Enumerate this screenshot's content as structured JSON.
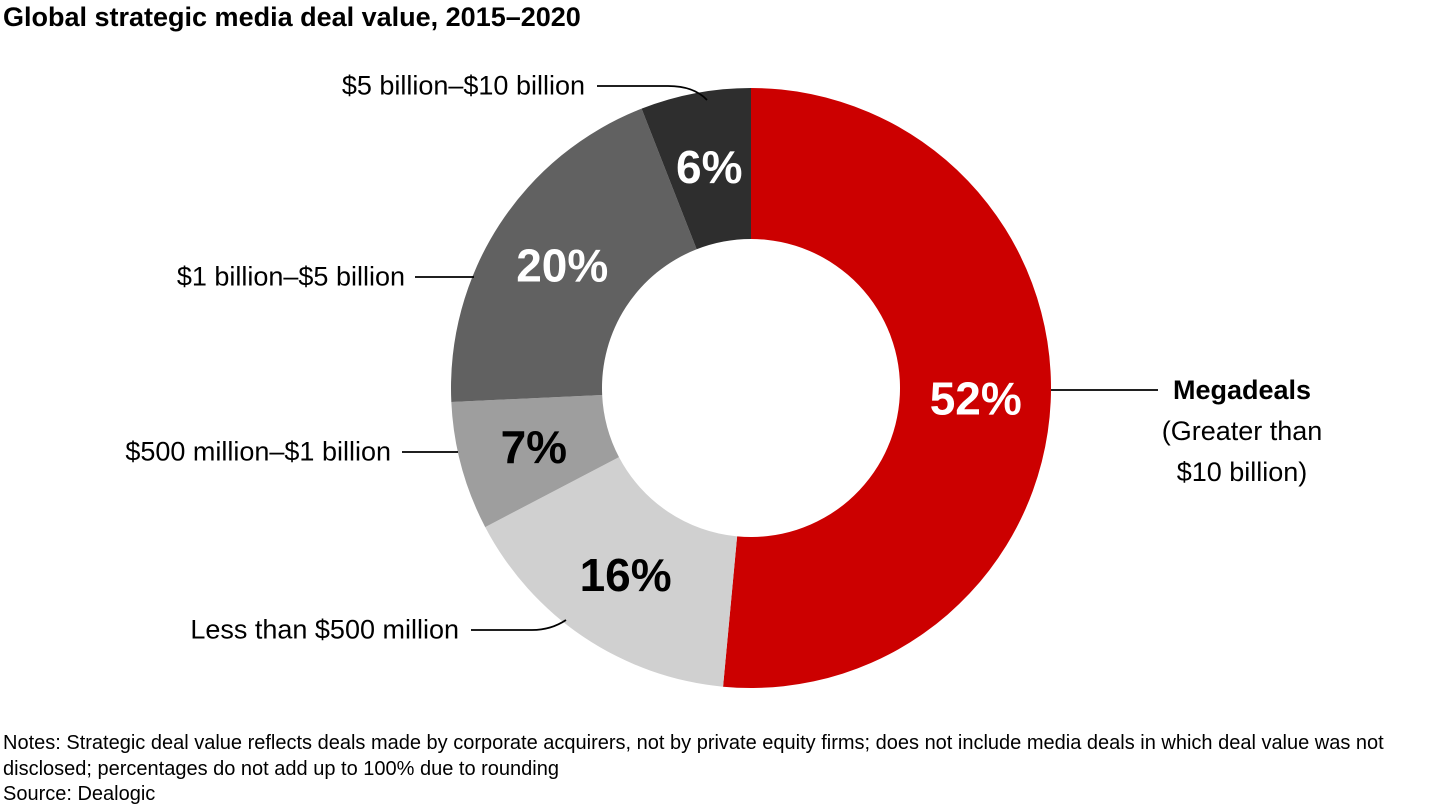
{
  "title": "Global strategic media deal value, 2015–2020",
  "chart_data": {
    "type": "pie",
    "variant": "donut",
    "title": "Global strategic media deal value, 2015–2020",
    "unit": "%",
    "direction": "clockwise-from-top",
    "segments": [
      {
        "label": "Megadeals",
        "sublabel_lines": [
          "(Greater than",
          "$10 billion)"
        ],
        "value": 52,
        "value_label": "52%",
        "color": "#CC0000",
        "value_text_color": "#FFFFFF"
      },
      {
        "label": "Less than $500 million",
        "value": 16,
        "value_label": "16%",
        "color": "#D0D0D0",
        "value_text_color": "#000000"
      },
      {
        "label": "$500 million–$1 billion",
        "value": 7,
        "value_label": "7%",
        "color": "#9E9E9E",
        "value_text_color": "#000000"
      },
      {
        "label": "$1 billion–$5 billion",
        "value": 20,
        "value_label": "20%",
        "color": "#616161",
        "value_text_color": "#FFFFFF"
      },
      {
        "label": "$5 billion–$10 billion",
        "value": 6,
        "value_label": "6%",
        "color": "#2E2E2E",
        "value_text_color": "#FFFFFF"
      }
    ]
  },
  "notes": "Notes: Strategic deal value reflects deals made by corporate acquirers, not by private equity firms; does not include media deals in which deal value was not disclosed; percentages do not add up to 100% due to rounding",
  "source": "Source: Dealogic"
}
